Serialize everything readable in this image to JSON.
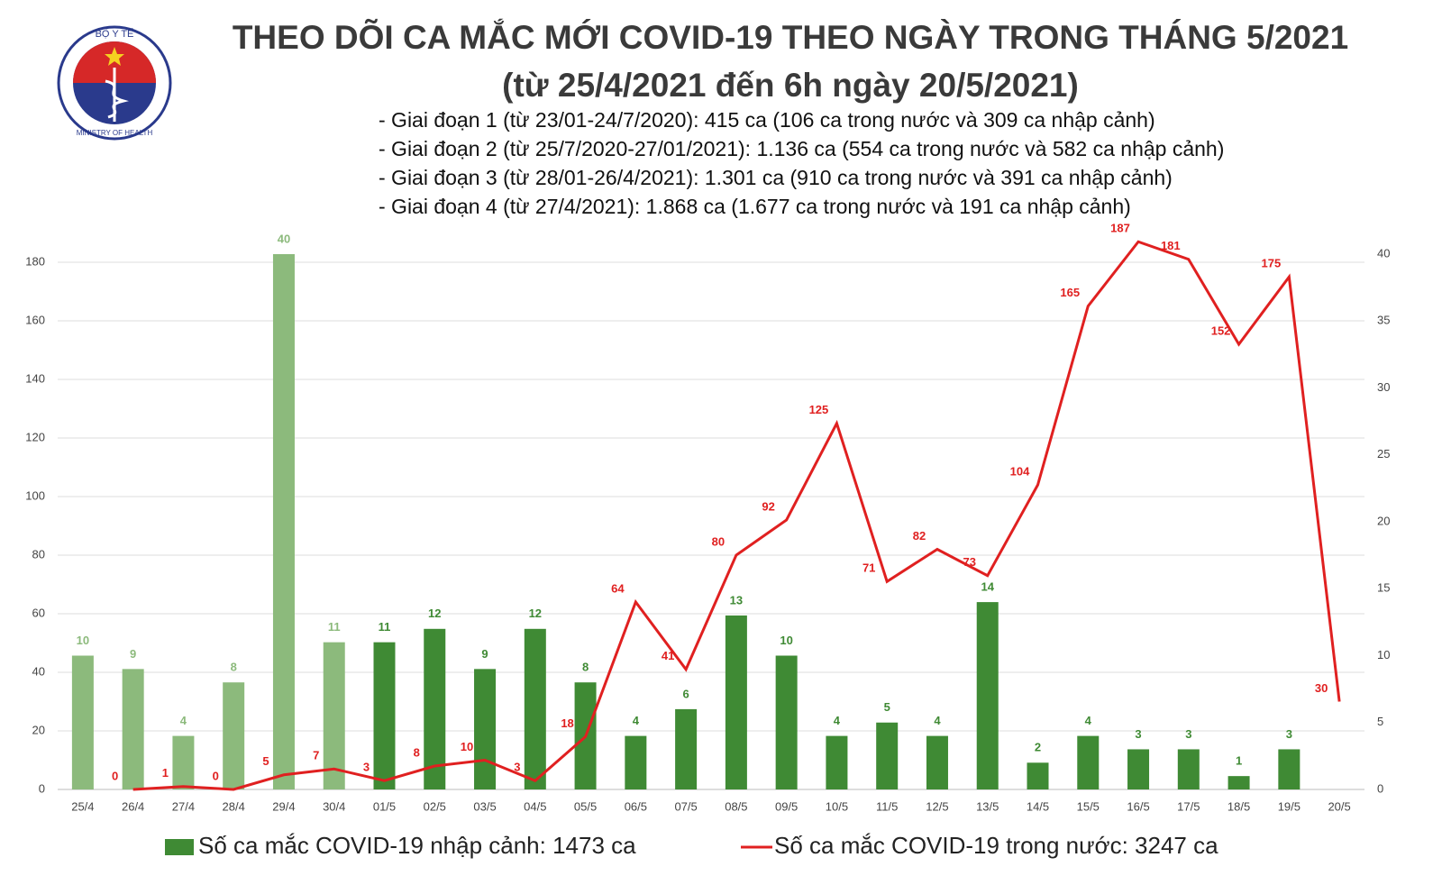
{
  "logo": {
    "top": "BỘ Y TẾ",
    "bottom": "MINISTRY OF HEALTH"
  },
  "chart_data": {
    "type": "bar-line",
    "title": "THEO DÕI CA MẮC MỚI COVID-19 THEO NGÀY TRONG THÁNG 5/2021",
    "subtitle": "(từ 25/4/2021 đến 6h ngày 20/5/2021)",
    "notes": [
      "- Giai đoạn 1 (từ 23/01-24/7/2020): 415 ca (106 ca trong nước và 309 ca nhập cảnh)",
      "- Giai đoạn 2 (từ 25/7/2020-27/01/2021): 1.136 ca (554 ca trong nước và 582 ca nhập cảnh)",
      "- Giai đoạn 3 (từ 28/01-26/4/2021): 1.301 ca (910 ca trong nước và 391 ca nhập cảnh)",
      "- Giai đoạn 4 (từ 27/4/2021): 1.868 ca (1.677 ca trong nước và 191 ca nhập cảnh)"
    ],
    "categories": [
      "25/4",
      "26/4",
      "27/4",
      "28/4",
      "29/4",
      "30/4",
      "01/5",
      "02/5",
      "03/5",
      "04/5",
      "05/5",
      "06/5",
      "07/5",
      "08/5",
      "09/5",
      "10/5",
      "11/5",
      "12/5",
      "13/5",
      "14/5",
      "15/5",
      "16/5",
      "17/5",
      "18/5",
      "19/5",
      "20/5"
    ],
    "series": [
      {
        "name": "Số ca mắc COVID-19 nhập cảnh: 1473 ca",
        "type": "bar",
        "axis": "y2",
        "color": "#3f8a34",
        "colors": [
          "#8cba7c",
          "#8cba7c",
          "#8cba7c",
          "#8cba7c",
          "#8cba7c",
          "#8cba7c",
          "#3f8a34",
          "#3f8a34",
          "#3f8a34",
          "#3f8a34",
          "#3f8a34",
          "#3f8a34",
          "#3f8a34",
          "#3f8a34",
          "#3f8a34",
          "#3f8a34",
          "#3f8a34",
          "#3f8a34",
          "#3f8a34",
          "#3f8a34",
          "#3f8a34",
          "#3f8a34",
          "#3f8a34",
          "#3f8a34",
          "#3f8a34",
          "#3f8a34"
        ],
        "values": [
          10,
          9,
          4,
          8,
          40,
          11,
          11,
          12,
          9,
          12,
          8,
          4,
          6,
          13,
          10,
          4,
          5,
          4,
          14,
          2,
          4,
          3,
          3,
          1,
          3,
          null
        ]
      },
      {
        "name": "Số ca mắc COVID-19 trong nước: 3247 ca",
        "type": "line",
        "color": "#e02020",
        "values": [
          null,
          0,
          1,
          0,
          5,
          7,
          3,
          8,
          10,
          3,
          18,
          64,
          41,
          80,
          92,
          125,
          71,
          82,
          73,
          104,
          165,
          187,
          181,
          152,
          175,
          30
        ]
      }
    ],
    "ylim": [
      0,
      180
    ],
    "yticks": [
      0,
      20,
      40,
      60,
      80,
      100,
      120,
      140,
      160,
      180
    ],
    "y2lim": [
      0,
      40
    ],
    "y2ticks": [
      0,
      5,
      10,
      15,
      20,
      25,
      30,
      35,
      40
    ],
    "grid": true
  }
}
